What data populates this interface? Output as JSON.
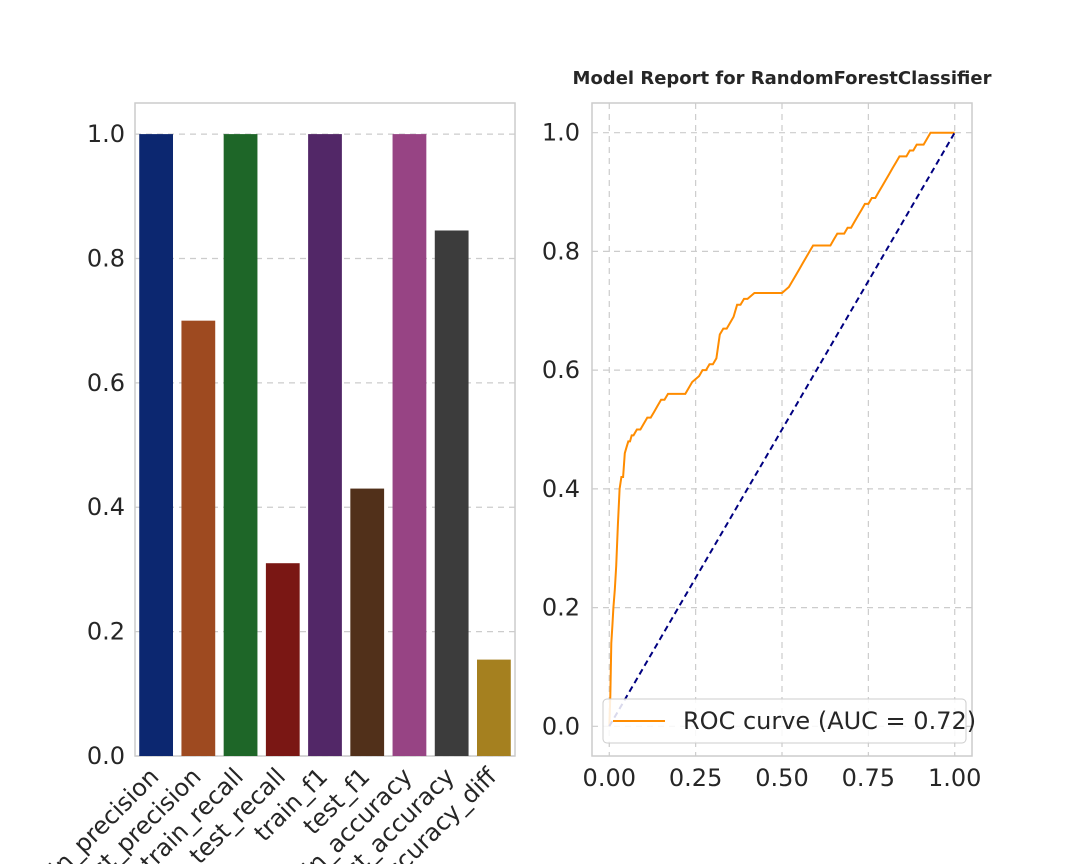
{
  "chart_data": [
    {
      "type": "bar",
      "title": "",
      "categories": [
        "train_precision",
        "test_precision",
        "train_recall",
        "test_recall",
        "train_f1",
        "test_f1",
        "train_accuracy",
        "test_accuracy",
        "accuracy_diff"
      ],
      "values": [
        1.0,
        0.7,
        1.0,
        0.31,
        1.0,
        0.43,
        1.0,
        0.845,
        0.155
      ],
      "colors": [
        "#0c2770",
        "#9e4a20",
        "#1e6628",
        "#7a1714",
        "#522767",
        "#51301a",
        "#974484",
        "#3c3c3c",
        "#a5801f"
      ],
      "ylim": [
        0,
        1.05
      ],
      "yticks": [
        0.0,
        0.2,
        0.4,
        0.6,
        0.8,
        1.0
      ],
      "ytick_labels": [
        "0.0",
        "0.2",
        "0.4",
        "0.6",
        "0.8",
        "1.0"
      ],
      "grid": true
    },
    {
      "type": "line",
      "title": "Model Report for RandomForestClassifier",
      "xlim": [
        -0.05,
        1.05
      ],
      "ylim": [
        -0.05,
        1.05
      ],
      "xticks": [
        0.0,
        0.25,
        0.5,
        0.75,
        1.0
      ],
      "xtick_labels": [
        "0.00",
        "0.25",
        "0.50",
        "0.75",
        "1.00"
      ],
      "yticks": [
        0.0,
        0.2,
        0.4,
        0.6,
        0.8,
        1.0
      ],
      "ytick_labels": [
        "0.0",
        "0.2",
        "0.4",
        "0.6",
        "0.8",
        "1.0"
      ],
      "grid": true,
      "legend_position": "lower-right",
      "series": [
        {
          "name": "ROC curve (AUC = 0.72)",
          "color": "#ff8c00",
          "x": [
            0.0,
            0.003,
            0.006,
            0.009,
            0.012,
            0.016,
            0.02,
            0.025,
            0.03,
            0.035,
            0.04,
            0.045,
            0.05,
            0.055,
            0.06,
            0.065,
            0.07,
            0.08,
            0.09,
            0.1,
            0.11,
            0.12,
            0.13,
            0.14,
            0.15,
            0.16,
            0.17,
            0.18,
            0.19,
            0.2,
            0.22,
            0.24,
            0.26,
            0.27,
            0.28,
            0.29,
            0.3,
            0.31,
            0.32,
            0.33,
            0.34,
            0.35,
            0.36,
            0.37,
            0.38,
            0.39,
            0.4,
            0.42,
            0.44,
            0.46,
            0.48,
            0.5,
            0.52,
            0.54,
            0.55,
            0.56,
            0.57,
            0.58,
            0.59,
            0.6,
            0.62,
            0.64,
            0.65,
            0.66,
            0.67,
            0.68,
            0.69,
            0.7,
            0.71,
            0.72,
            0.73,
            0.74,
            0.75,
            0.76,
            0.77,
            0.78,
            0.79,
            0.8,
            0.81,
            0.82,
            0.83,
            0.84,
            0.85,
            0.86,
            0.87,
            0.88,
            0.89,
            0.9,
            0.91,
            0.92,
            0.93,
            0.94,
            0.95,
            0.97,
            1.0
          ],
          "y": [
            0.0,
            0.05,
            0.14,
            0.17,
            0.2,
            0.23,
            0.27,
            0.34,
            0.4,
            0.42,
            0.42,
            0.46,
            0.47,
            0.48,
            0.48,
            0.49,
            0.49,
            0.5,
            0.5,
            0.51,
            0.52,
            0.52,
            0.53,
            0.54,
            0.55,
            0.55,
            0.56,
            0.56,
            0.56,
            0.56,
            0.56,
            0.58,
            0.59,
            0.6,
            0.6,
            0.61,
            0.61,
            0.62,
            0.66,
            0.67,
            0.67,
            0.68,
            0.69,
            0.71,
            0.71,
            0.72,
            0.72,
            0.73,
            0.73,
            0.73,
            0.73,
            0.73,
            0.74,
            0.76,
            0.77,
            0.78,
            0.79,
            0.8,
            0.81,
            0.81,
            0.81,
            0.81,
            0.82,
            0.83,
            0.83,
            0.83,
            0.84,
            0.84,
            0.85,
            0.86,
            0.87,
            0.88,
            0.88,
            0.89,
            0.89,
            0.9,
            0.91,
            0.92,
            0.93,
            0.94,
            0.95,
            0.96,
            0.96,
            0.96,
            0.97,
            0.97,
            0.98,
            0.98,
            0.98,
            0.99,
            1.0,
            1.0,
            1.0,
            1.0,
            1.0
          ]
        },
        {
          "name": "",
          "color": "#000080",
          "dashed": true,
          "x": [
            0.0,
            1.0
          ],
          "y": [
            0.0,
            1.0
          ]
        }
      ]
    }
  ]
}
